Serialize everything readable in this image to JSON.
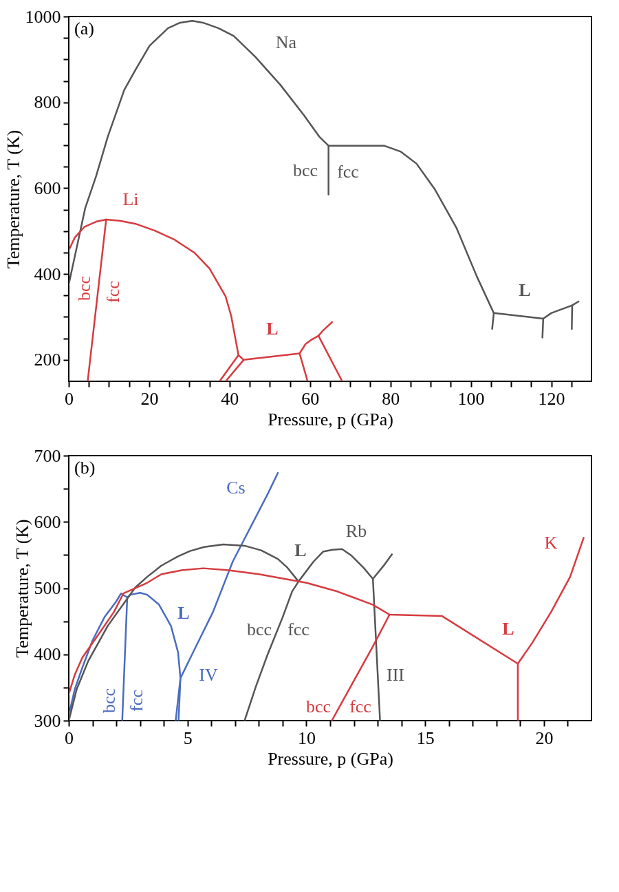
{
  "chart_data": [
    {
      "type": "line",
      "xlabel": "Pressure, p (GPa)",
      "ylabel": "Temperature, T (K)",
      "xlim": [
        0,
        130
      ],
      "ylim": [
        150,
        1000
      ],
      "xticks": [
        0,
        {
          "value": 5,
          "label": null
        },
        {
          "value": 10,
          "label": null
        },
        {
          "value": 15,
          "label": null
        },
        20,
        {
          "value": 25,
          "label": null
        },
        {
          "value": 30,
          "label": null
        },
        {
          "value": 35,
          "label": null
        },
        40,
        {
          "value": 45,
          "label": null
        },
        {
          "value": 50,
          "label": null
        },
        {
          "value": 55,
          "label": null
        },
        60,
        {
          "value": 65,
          "label": null
        },
        {
          "value": 70,
          "label": null
        },
        {
          "value": 75,
          "label": null
        },
        80,
        {
          "value": 85,
          "label": null
        },
        {
          "value": 90,
          "label": null
        },
        {
          "value": 95,
          "label": null
        },
        100,
        {
          "value": 105,
          "label": null
        },
        {
          "value": 110,
          "label": null
        },
        {
          "value": 115,
          "label": null
        },
        120,
        {
          "value": 125,
          "label": null
        }
      ],
      "yticks": [
        200,
        {
          "value": 250,
          "label": null
        },
        {
          "value": 300,
          "label": null
        },
        {
          "value": 350,
          "label": null
        },
        400,
        {
          "value": 450,
          "label": null
        },
        {
          "value": 500,
          "label": null
        },
        {
          "value": 550,
          "label": null
        },
        600,
        {
          "value": 650,
          "label": null
        },
        {
          "value": 700,
          "label": null
        },
        {
          "value": 750,
          "label": null
        },
        800,
        {
          "value": 850,
          "label": null
        },
        {
          "value": 900,
          "label": null
        },
        {
          "value": 950,
          "label": null
        },
        {
          "value": 1000,
          "label": "1000"
        }
      ],
      "series": [
        {
          "color": "#555555",
          "x": [
            0,
            4.1,
            6.8,
            9.7,
            13.8,
            16.6,
            20.1,
            24.7,
            27.5,
            30.7,
            33.6,
            37.2,
            41,
            46.4,
            52.6,
            58.4,
            62.3,
            64.6,
            78.4,
            82.6,
            86.5,
            91,
            96.4,
            101.5,
            105.7,
            118,
            120,
            125.2,
            126.8
          ],
          "values": [
            376,
            554,
            628,
            720,
            829,
            876,
            932,
            973,
            985,
            990,
            985,
            973,
            955,
            906,
            841,
            771,
            720,
            699,
            699,
            685,
            657,
            598,
            508,
            394,
            309,
            296,
            309,
            327,
            336
          ]
        },
        {
          "color": "#555555",
          "x": [
            64.6,
            64.6
          ],
          "values": [
            699,
            585
          ]
        },
        {
          "color": "#555555",
          "x": [
            105.7,
            105.3
          ],
          "values": [
            309,
            272
          ]
        },
        {
          "color": "#555555",
          "x": [
            118,
            117.8
          ],
          "values": [
            296,
            252
          ]
        },
        {
          "color": "#555555",
          "x": [
            125.2,
            125.1
          ],
          "values": [
            327,
            272
          ]
        },
        {
          "color": "#d63b3f",
          "x": [
            0,
            1.5,
            3.9,
            6.8,
            9.3,
            12.7,
            16.6,
            21.4,
            26.3,
            31.2,
            35,
            39,
            40.4,
            42.2,
            43.5,
            57.4,
            58.9,
            60.2,
            62.1,
            63.3,
            65.5
          ],
          "values": [
            455,
            485,
            510,
            522,
            527,
            524,
            517,
            501,
            480,
            450,
            413,
            348,
            302,
            211,
            200,
            215,
            237,
            246,
            256,
            269,
            288
          ]
        },
        {
          "color": "#d63b3f",
          "x": [
            9.3,
            4.7
          ],
          "values": [
            527,
            150
          ]
        },
        {
          "color": "#d63b3f",
          "x": [
            42.2,
            37.5
          ],
          "values": [
            211,
            150
          ]
        },
        {
          "color": "#d63b3f",
          "x": [
            43.5,
            39
          ],
          "values": [
            200,
            150
          ]
        },
        {
          "color": "#d63b3f",
          "x": [
            57.4,
            59.4
          ],
          "values": [
            215,
            150
          ]
        },
        {
          "color": "#d63b3f",
          "x": [
            62.1,
            68
          ],
          "values": [
            256,
            150
          ]
        }
      ],
      "annotations": [
        "(a)",
        "Na",
        "bcc",
        "fcc",
        "Li",
        "bcc",
        "fcc",
        "L",
        "L"
      ]
    },
    {
      "type": "line",
      "xlabel": "Pressure, p (GPa)",
      "ylabel": "Temperature, T (K)",
      "xlim": [
        0,
        22
      ],
      "ylim": [
        300,
        700
      ],
      "xticks": [
        0,
        {
          "value": 1,
          "label": null
        },
        {
          "value": 2,
          "label": null
        },
        {
          "value": 3,
          "label": null
        },
        {
          "value": 4,
          "label": null
        },
        5,
        {
          "value": 6,
          "label": null
        },
        {
          "value": 7,
          "label": null
        },
        {
          "value": 8,
          "label": null
        },
        {
          "value": 9,
          "label": null
        },
        10,
        {
          "value": 11,
          "label": null
        },
        {
          "value": 12,
          "label": null
        },
        {
          "value": 13,
          "label": null
        },
        {
          "value": 14,
          "label": null
        },
        15,
        {
          "value": 16,
          "label": null
        },
        {
          "value": 17,
          "label": null
        },
        {
          "value": 18,
          "label": null
        },
        {
          "value": 19,
          "label": null
        },
        20,
        {
          "value": 21,
          "label": null
        }
      ],
      "yticks": [
        300,
        {
          "value": 350,
          "label": null
        },
        400,
        {
          "value": 450,
          "label": null
        },
        500,
        {
          "value": 550,
          "label": null
        },
        600,
        {
          "value": 650,
          "label": null
        },
        700
      ],
      "series": [
        {
          "color": "#4a6cc0",
          "x": [
            0,
            0.25,
            0.57,
            1,
            1.5,
            2,
            2.2,
            2.46,
            2.6,
            3,
            3.3,
            3.8,
            4.3,
            4.6,
            4.7,
            4.5
          ],
          "values": [
            308,
            347,
            380,
            421,
            456,
            480,
            492,
            486,
            490,
            493,
            490,
            475,
            443,
            403,
            364,
            300
          ]
        },
        {
          "color": "#4a6cc0",
          "x": [
            2.46,
            2.25
          ],
          "values": [
            486,
            300
          ]
        },
        {
          "color": "#4a6cc0",
          "x": [
            4.62,
            4.7,
            5.3,
            6.07,
            6.9,
            8.4,
            8.8
          ],
          "values": [
            300,
            364,
            408,
            464,
            540,
            644,
            674
          ]
        },
        {
          "color": "#555555",
          "x": [
            0,
            0.33,
            0.82,
            1.64,
            2.8,
            3.3,
            3.9,
            4.6,
            5.1,
            5.7,
            6.5,
            7.4,
            8.1,
            8.8,
            9.2,
            9.67,
            10.3,
            10.7,
            11.1,
            11.5,
            11.9,
            12.4,
            12.8,
            13.3,
            13.6
          ],
          "values": [
            300,
            347,
            390,
            443,
            501,
            517,
            534,
            548,
            556,
            562,
            566,
            564,
            557,
            544,
            531,
            510,
            540,
            555,
            558,
            559,
            549,
            531,
            514,
            536,
            551
          ]
        },
        {
          "color": "#555555",
          "x": [
            9.67,
            9.4,
            9.0,
            8.36,
            7.87,
            7.4
          ],
          "values": [
            510,
            495,
            456,
            399,
            351,
            300
          ]
        },
        {
          "color": "#555555",
          "x": [
            12.8,
            13.1
          ],
          "values": [
            514,
            300
          ]
        },
        {
          "color": "#d63b3f",
          "x": [
            0,
            0.25,
            0.57,
            1.15,
            1.9,
            2.3,
            3.3,
            3.9,
            4.75,
            5.66,
            6.72,
            8.0,
            10,
            11.3,
            12.8,
            13.5,
            15.7,
            18.9,
            19.5,
            20.3,
            21.1,
            21.67
          ],
          "values": [
            340,
            369,
            395,
            425,
            464,
            492,
            508,
            521,
            527,
            530,
            527,
            521,
            508,
            495,
            475,
            460,
            458,
            386,
            417,
            464,
            517,
            576
          ]
        },
        {
          "color": "#d63b3f",
          "x": [
            18.9,
            18.9
          ],
          "values": [
            386,
            300
          ]
        },
        {
          "color": "#d63b3f",
          "x": [
            13.5,
            12.8,
            11.07
          ],
          "values": [
            460,
            412,
            300
          ]
        }
      ],
      "annotations": [
        "(b)",
        "Cs",
        "Rb",
        "K",
        "L",
        "bcc",
        "fcc",
        "L",
        "IV",
        "bcc",
        "fcc",
        "III",
        "bcc",
        "fcc",
        "L"
      ]
    }
  ]
}
